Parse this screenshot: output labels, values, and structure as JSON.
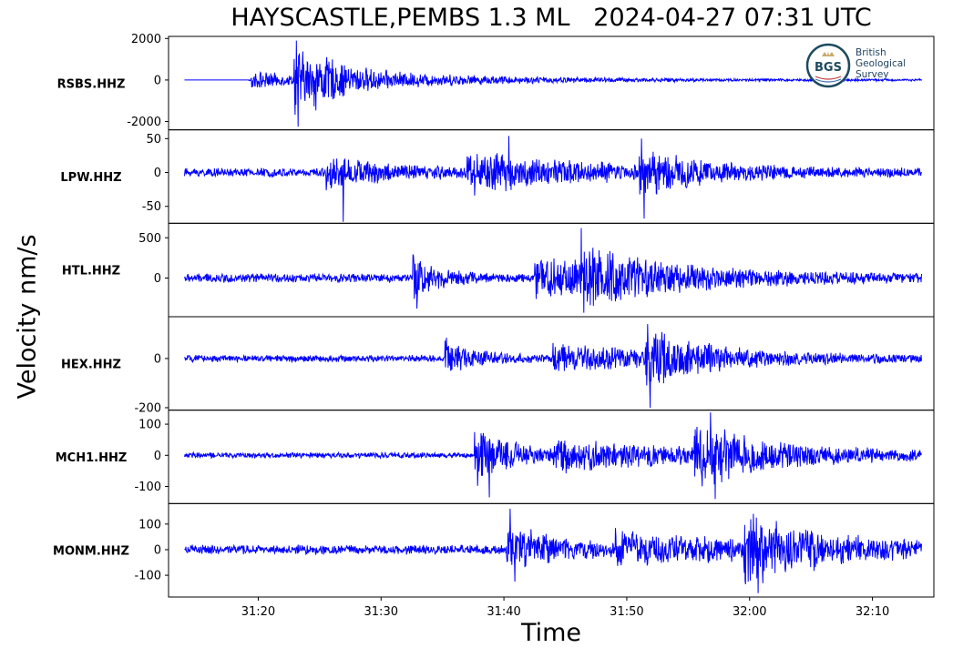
{
  "title": "HAYSCASTLE,PEMBS 1.3 ML   2024-04-27 07:31 UTC",
  "ylabel": "Velocity nm/s",
  "xlabel": "Time",
  "logo": {
    "mark": "BGS",
    "line1": "British",
    "line2": "Geological",
    "line3": "Survey"
  },
  "colors": {
    "trace": "#0000ff",
    "axes": "#000000"
  },
  "chart_data": {
    "type": "line",
    "title": "HAYSCASTLE,PEMBS 1.3 ML   2024-04-27 07:31 UTC",
    "xlabel": "Time",
    "ylabel": "Velocity nm/s",
    "x_ticks": [
      "31:20",
      "31:30",
      "31:40",
      "31:50",
      "32:00",
      "32:10"
    ],
    "x_range_seconds": [
      1872.7,
      1935.0
    ],
    "trace_span_seconds": [
      1874.0,
      1934.0
    ],
    "series": [
      {
        "name": "RSBS.HHZ",
        "ylim": [
          -2400,
          2100
        ],
        "yticks": [
          2000,
          0,
          -2000
        ],
        "ytick_labels": [
          "2000",
          "0",
          "-2000"
        ],
        "start_offset": 5.2,
        "noise": 50,
        "bursts": [
          {
            "t": 5.4,
            "amp": 500,
            "decay": 4.0
          },
          {
            "t": 8.9,
            "amp": 1850,
            "decay": 2.2
          },
          {
            "t": 10.5,
            "amp": 600,
            "decay": 12.0
          }
        ],
        "peaks": [
          {
            "t": 9.1,
            "v": 1900
          },
          {
            "t": 9.25,
            "v": -2250
          }
        ]
      },
      {
        "name": "LPW.HHZ",
        "ylim": [
          -75,
          63
        ],
        "yticks": [
          50,
          0,
          -50
        ],
        "ytick_labels": [
          "50",
          "0",
          "-50"
        ],
        "start_offset": 0,
        "noise": 7,
        "bursts": [
          {
            "t": 11.5,
            "amp": 22,
            "decay": 6.0
          },
          {
            "t": 23,
            "amp": 28,
            "decay": 10.0
          },
          {
            "t": 37,
            "amp": 35,
            "decay": 4.0
          }
        ],
        "peaks": [
          {
            "t": 12.9,
            "v": -73
          },
          {
            "t": 37.2,
            "v": 50
          },
          {
            "t": 37.4,
            "v": -68
          },
          {
            "t": 26.4,
            "v": 54
          }
        ]
      },
      {
        "name": "HTL.HHZ",
        "ylim": [
          -480,
          680
        ],
        "yticks": [
          500,
          0
        ],
        "ytick_labels": [
          "500",
          "0"
        ],
        "start_offset": 0,
        "noise": 60,
        "bursts": [
          {
            "t": 18.6,
            "amp": 300,
            "decay": 2.0
          },
          {
            "t": 28.5,
            "amp": 280,
            "decay": 10.0
          },
          {
            "t": 32.5,
            "amp": 200,
            "decay": 6.0
          }
        ],
        "peaks": [
          {
            "t": 32.3,
            "v": 620
          },
          {
            "t": 32.5,
            "v": -430
          },
          {
            "t": 18.9,
            "v": -380
          }
        ]
      },
      {
        "name": "HEX.HHZ",
        "ylim": [
          -210,
          170
        ],
        "yticks": [
          0,
          -200
        ],
        "ytick_labels": [
          "0",
          "-200"
        ],
        "start_offset": 0,
        "noise": 15,
        "bursts": [
          {
            "t": 21.2,
            "amp": 80,
            "decay": 2.5
          },
          {
            "t": 37.5,
            "amp": 120,
            "decay": 4.0
          },
          {
            "t": 30,
            "amp": 50,
            "decay": 12.0
          }
        ],
        "peaks": [
          {
            "t": 37.7,
            "v": 140
          },
          {
            "t": 37.9,
            "v": -200
          },
          {
            "t": 21.3,
            "v": 85
          }
        ]
      },
      {
        "name": "MCH1.HHZ",
        "ylim": [
          -155,
          145
        ],
        "yticks": [
          100,
          0,
          -100
        ],
        "ytick_labels": [
          "100",
          "0",
          "-100"
        ],
        "start_offset": 0,
        "noise": 10,
        "bursts": [
          {
            "t": 23.6,
            "amp": 100,
            "decay": 3.5
          },
          {
            "t": 41.5,
            "amp": 95,
            "decay": 6.0
          },
          {
            "t": 30,
            "amp": 45,
            "decay": 15.0
          }
        ],
        "peaks": [
          {
            "t": 42.8,
            "v": 138
          },
          {
            "t": 43.2,
            "v": -140
          },
          {
            "t": 24.8,
            "v": -135
          }
        ]
      },
      {
        "name": "MONM.HHZ",
        "ylim": [
          -185,
          180
        ],
        "yticks": [
          100,
          0,
          -100
        ],
        "ytick_labels": [
          "100",
          "0",
          "-100"
        ],
        "start_offset": 0,
        "noise": 20,
        "bursts": [
          {
            "t": 26.2,
            "amp": 110,
            "decay": 4.0
          },
          {
            "t": 45.5,
            "amp": 120,
            "decay": 6.0
          },
          {
            "t": 35,
            "amp": 55,
            "decay": 15.0
          }
        ],
        "peaks": [
          {
            "t": 26.5,
            "v": 160
          },
          {
            "t": 26.9,
            "v": -125
          },
          {
            "t": 46.3,
            "v": 140
          },
          {
            "t": 46.7,
            "v": -170
          }
        ]
      }
    ]
  }
}
